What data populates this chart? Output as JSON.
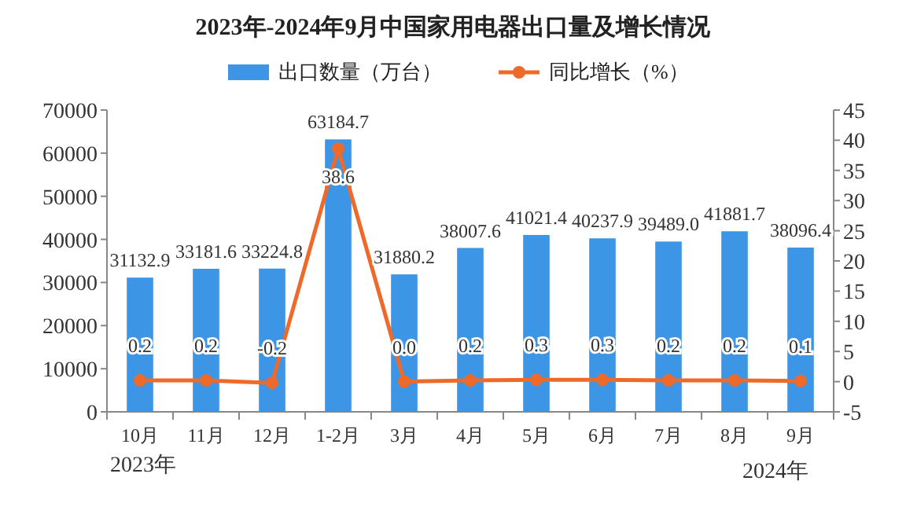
{
  "chart_data": {
    "type": "bar",
    "title": "2023年-2024年9月中国家用电器出口量及增长情况",
    "categories": [
      "10月",
      "11月",
      "12月",
      "1-2月",
      "3月",
      "4月",
      "5月",
      "6月",
      "7月",
      "8月",
      "9月"
    ],
    "series": [
      {
        "name": "出口数量（万台）",
        "color": "#3d95e6",
        "values": [
          31132.9,
          33181.6,
          33224.8,
          63184.7,
          31880.2,
          38007.6,
          41021.4,
          40237.9,
          39489.0,
          41881.7,
          38096.4
        ],
        "value_labels": [
          "31132.9",
          "33181.6",
          "33224.8",
          "63184.7",
          "31880.2",
          "38007.6",
          "41021.4",
          "40237.9",
          "39489.0",
          "41881.7",
          "38096.4"
        ]
      },
      {
        "name": "同比增长（%）",
        "type": "line",
        "axis": "y2",
        "color": "#ed6a2b",
        "marker": "circle",
        "values": [
          0.2,
          0.2,
          -0.2,
          38.6,
          0.0,
          0.2,
          0.3,
          0.3,
          0.2,
          0.2,
          0.1
        ],
        "value_labels": [
          "0.2",
          "0.2",
          "-0.2",
          "38.6",
          "0.0",
          "0.2",
          "0.3",
          "0.3",
          "0.2",
          "0.2",
          "0.1"
        ]
      }
    ],
    "ylim": [
      0,
      70000
    ],
    "yticks": [
      0,
      10000,
      20000,
      30000,
      40000,
      50000,
      60000,
      70000
    ],
    "y2lim": [
      -5,
      45
    ],
    "y2ticks": [
      -5,
      0,
      5,
      10,
      15,
      20,
      25,
      30,
      35,
      40,
      45
    ],
    "legend": "top",
    "grid": false,
    "annotations": [
      "2023年",
      "2024年"
    ]
  }
}
